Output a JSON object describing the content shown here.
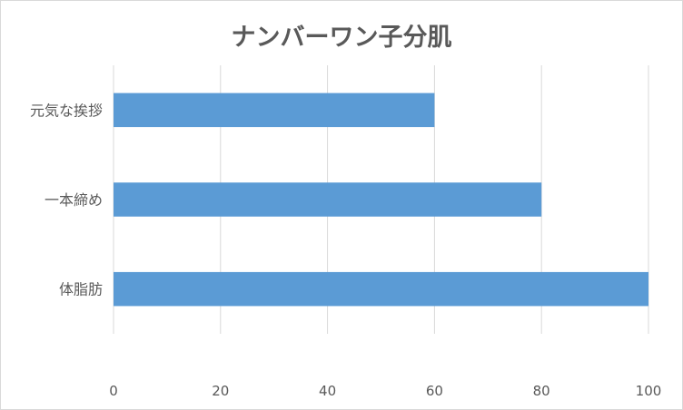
{
  "chart_data": {
    "type": "bar",
    "orientation": "horizontal",
    "title": "ナンバーワン子分肌",
    "categories": [
      "元気な挨拶",
      "一本締め",
      "体脂肪"
    ],
    "values": [
      60,
      80,
      100
    ],
    "xlabel": "",
    "ylabel": "",
    "xlim": [
      0,
      100
    ],
    "xticks": [
      "0",
      "20",
      "40",
      "60",
      "80",
      "100"
    ],
    "grid": "vertical",
    "legend": "none",
    "bar_color": "#5b9bd5",
    "grid_color": "#d9d9d9"
  }
}
